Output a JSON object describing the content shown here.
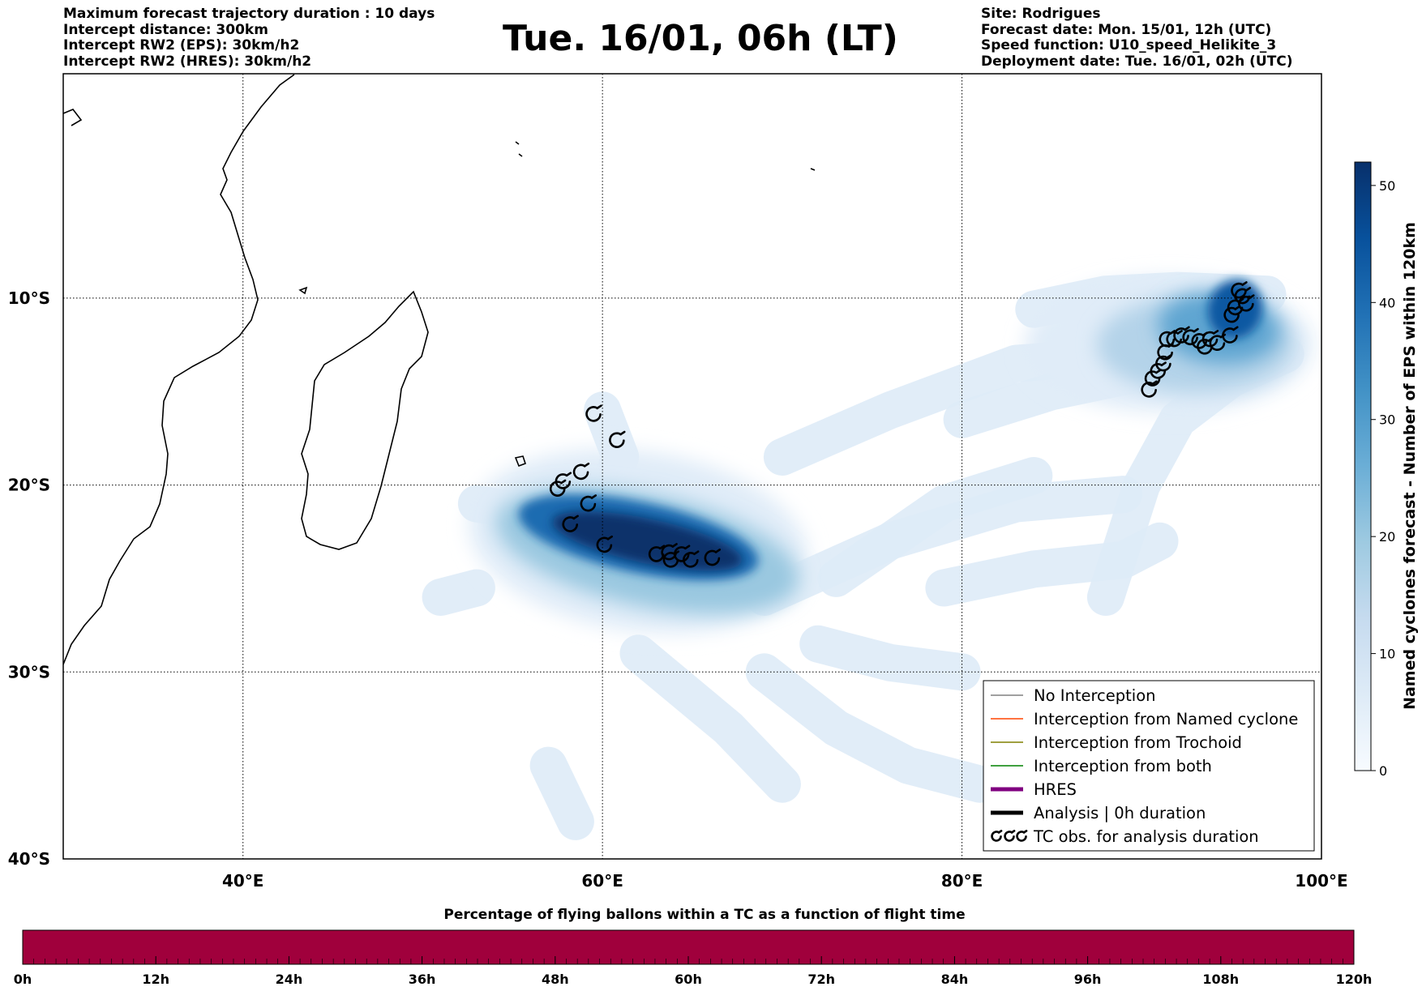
{
  "header": {
    "left_lines": [
      "Maximum forecast trajectory duration : 10 days",
      "Intercept distance: 300km",
      "Intercept RW2 (EPS):  30km/h2",
      "Intercept RW2 (HRES): 30km/h2"
    ],
    "title": "Tue. 16/01, 06h (LT)",
    "right_lines": [
      "Site: Rodrigues",
      "Forecast date: Mon. 15/01, 12h (UTC)",
      "Speed function: U10_speed_Helikite_3",
      "Deployment date: Tue. 16/01, 02h (UTC)"
    ]
  },
  "map": {
    "lon_range": [
      30,
      100
    ],
    "lat_range": [
      -40,
      2
    ],
    "lon_ticks": [
      "40°E",
      "60°E",
      "80°E",
      "100°E"
    ],
    "lat_ticks": [
      "10°S",
      "20°S",
      "30°S",
      "40°S"
    ],
    "gridlines": true
  },
  "colorbar": {
    "label": "Named cyclones forecast - Number of EPS within 120km",
    "ticks": [
      "0",
      "10",
      "20",
      "30",
      "40",
      "50"
    ],
    "range": [
      0,
      52
    ],
    "colormap": "Blues"
  },
  "legend": {
    "items": [
      {
        "label": "No Interception",
        "color": "#808080",
        "style": "thin"
      },
      {
        "label": "Interception from Named cyclone",
        "color": "#ff4500",
        "style": "thin"
      },
      {
        "label": "Interception from Trochoid",
        "color": "#808000",
        "style": "thin"
      },
      {
        "label": "Interception from both",
        "color": "#008000",
        "style": "thin"
      },
      {
        "label": "HRES",
        "color": "#800080",
        "style": "thick"
      },
      {
        "label": "Analysis | 0h duration",
        "color": "#000000",
        "style": "thick"
      },
      {
        "label": "TC obs. for analysis duration",
        "color": "#000000",
        "style": "cyclone-symbols"
      }
    ],
    "placement": "lower-right"
  },
  "bottom_bar": {
    "title": "Percentage of flying ballons within a TC as a function of flight time",
    "ticks": [
      "0h",
      "12h",
      "24h",
      "36h",
      "48h",
      "60h",
      "72h",
      "84h",
      "96h",
      "108h",
      "120h"
    ],
    "fill_color": "#a0003c"
  },
  "cyclone_tracks": [
    {
      "name": "west-track",
      "points": [
        [
          59.5,
          -16.2
        ],
        [
          60.8,
          -17.6
        ],
        [
          58.8,
          -19.3
        ],
        [
          57.8,
          -19.8
        ],
        [
          57.5,
          -20.2
        ],
        [
          59.2,
          -21.0
        ],
        [
          58.2,
          -22.1
        ],
        [
          60.1,
          -23.2
        ],
        [
          63.0,
          -23.7
        ],
        [
          63.7,
          -23.6
        ],
        [
          63.8,
          -24.0
        ],
        [
          64.4,
          -23.7
        ],
        [
          64.9,
          -24.0
        ],
        [
          66.1,
          -23.9
        ]
      ]
    },
    {
      "name": "east-track",
      "points": [
        [
          95.4,
          -9.6
        ],
        [
          95.6,
          -9.9
        ],
        [
          95.8,
          -10.3
        ],
        [
          95.2,
          -10.5
        ],
        [
          95.0,
          -10.9
        ],
        [
          94.9,
          -12.0
        ],
        [
          94.2,
          -12.4
        ],
        [
          93.8,
          -12.2
        ],
        [
          93.5,
          -12.6
        ],
        [
          93.2,
          -12.3
        ],
        [
          92.7,
          -12.1
        ],
        [
          92.2,
          -12.0
        ],
        [
          91.8,
          -12.2
        ],
        [
          91.4,
          -12.2
        ],
        [
          91.3,
          -12.9
        ],
        [
          91.2,
          -13.5
        ],
        [
          90.9,
          -13.9
        ],
        [
          90.6,
          -14.3
        ],
        [
          90.4,
          -14.9
        ]
      ]
    }
  ],
  "density_field": [
    {
      "lon": 62.5,
      "lat": -23.0,
      "rx": 5.4,
      "ry": 1.2,
      "rot": 12,
      "value": 52
    },
    {
      "lon": 62.0,
      "lat": -22.8,
      "rx": 6.8,
      "ry": 1.9,
      "rot": 12,
      "value": 40
    },
    {
      "lon": 62.5,
      "lat": -23.5,
      "rx": 8.6,
      "ry": 3.0,
      "rot": 12,
      "value": 20
    },
    {
      "lon": 62.0,
      "lat": -23.0,
      "rx": 9.5,
      "ry": 4.8,
      "rot": 8,
      "value": 6
    },
    {
      "lon": 95.2,
      "lat": -10.6,
      "rx": 1.5,
      "ry": 1.6,
      "rot": 20,
      "value": 44
    },
    {
      "lon": 94.3,
      "lat": -11.6,
      "rx": 3.4,
      "ry": 1.9,
      "rot": 5,
      "value": 28
    },
    {
      "lon": 93.0,
      "lat": -12.5,
      "rx": 5.5,
      "ry": 2.6,
      "rot": 0,
      "value": 16
    },
    {
      "lon": 91.5,
      "lat": -12.5,
      "rx": 8.0,
      "ry": 3.6,
      "rot": 0,
      "value": 6
    }
  ],
  "density_paths": [
    [
      [
        84,
        -10.6
      ],
      [
        88,
        -9.8
      ],
      [
        92,
        -9.6
      ],
      [
        97,
        -9.8
      ]
    ],
    [
      [
        80,
        -16.5
      ],
      [
        85,
        -15
      ],
      [
        90,
        -14
      ]
    ],
    [
      [
        70,
        -18.5
      ],
      [
        76,
        -16
      ],
      [
        83,
        -13.5
      ],
      [
        90,
        -13
      ]
    ],
    [
      [
        73,
        -25
      ],
      [
        79,
        -21
      ],
      [
        84,
        -19.5
      ]
    ],
    [
      [
        69,
        -26
      ],
      [
        76,
        -23
      ],
      [
        83,
        -21
      ],
      [
        89,
        -20.5
      ]
    ],
    [
      [
        88,
        -26
      ],
      [
        90,
        -20
      ],
      [
        92,
        -16.5
      ],
      [
        95,
        -14.3
      ],
      [
        98,
        -13
      ]
    ],
    [
      [
        79,
        -25.5
      ],
      [
        84,
        -24.5
      ],
      [
        89,
        -24
      ],
      [
        91,
        -23
      ]
    ],
    [
      [
        72,
        -28.5
      ],
      [
        76,
        -29.5
      ],
      [
        80,
        -30
      ]
    ],
    [
      [
        69,
        -30
      ],
      [
        73,
        -33
      ],
      [
        77,
        -35
      ],
      [
        81,
        -36
      ]
    ],
    [
      [
        62,
        -29
      ],
      [
        67,
        -33
      ],
      [
        70,
        -36
      ]
    ],
    [
      [
        57,
        -35
      ],
      [
        58.5,
        -38
      ]
    ],
    [
      [
        60,
        -16
      ],
      [
        61,
        -18.5
      ],
      [
        60,
        -21
      ]
    ],
    [
      [
        53,
        -21
      ],
      [
        56,
        -21.5
      ],
      [
        58,
        -23
      ]
    ],
    [
      [
        51,
        -26
      ],
      [
        53,
        -25.5
      ]
    ]
  ]
}
